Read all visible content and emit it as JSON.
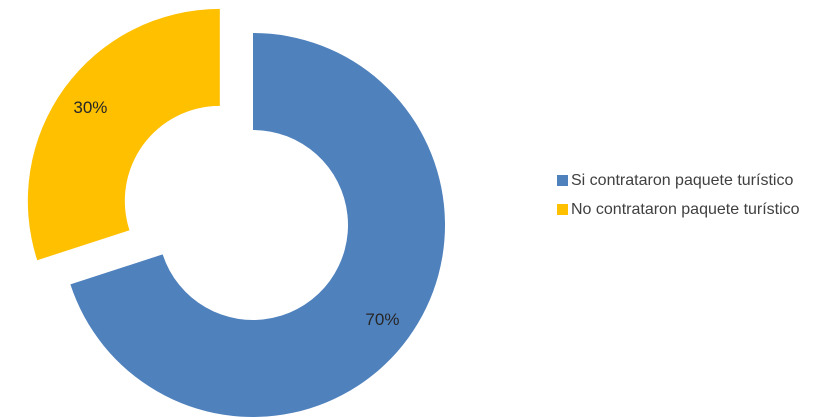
{
  "chart_data": {
    "type": "pie",
    "variant": "doughnut",
    "exploded": true,
    "title": "",
    "legend_position": "right",
    "series": [
      {
        "values": [
          70,
          30
        ]
      }
    ],
    "categories": [
      "Si contrataron paquete turístico",
      "No contrataron paquete turístico"
    ],
    "slices": [
      {
        "label": "Si contrataron paquete turístico",
        "value": 70,
        "data_label": "70%",
        "color": "#4F81BD"
      },
      {
        "label": "No contrataron paquete turístico",
        "value": 30,
        "data_label": "30%",
        "color": "#FFC000"
      }
    ]
  }
}
